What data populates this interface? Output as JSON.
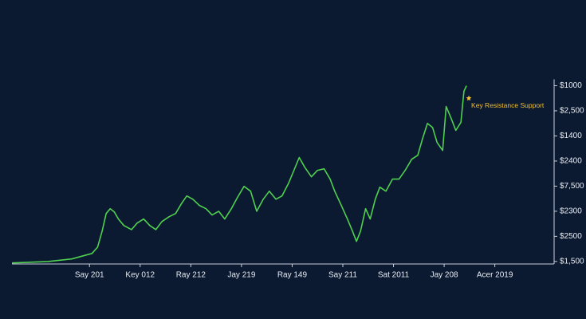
{
  "chart_data": {
    "type": "line",
    "annotation": "Key Resistance Support",
    "annotation_x": 8.44,
    "annotation_y": 6.2,
    "color": "#4fd14f",
    "annotation_color": "#f2c12e",
    "x": [
      -0.53,
      0.18,
      0.65,
      1.05,
      1.16,
      1.25,
      1.33,
      1.41,
      1.49,
      1.57,
      1.68,
      1.83,
      1.94,
      2.07,
      2.19,
      2.31,
      2.43,
      2.57,
      2.7,
      2.82,
      2.92,
      3.04,
      3.17,
      3.3,
      3.42,
      3.55,
      3.67,
      3.8,
      3.92,
      4.05,
      4.18,
      4.3,
      4.43,
      4.55,
      4.68,
      4.8,
      4.93,
      5.03,
      5.14,
      5.25,
      5.38,
      5.5,
      5.63,
      5.75,
      5.84,
      5.97,
      6.09,
      6.19,
      6.27,
      6.35,
      6.45,
      6.54,
      6.64,
      6.73,
      6.85,
      6.98,
      7.11,
      7.23,
      7.36,
      7.48,
      7.57,
      7.67,
      7.77,
      7.86,
      7.97,
      8.04,
      8.14,
      8.23,
      8.33,
      8.39,
      8.44
    ],
    "values": [
      -0.06,
      0,
      0.1,
      0.32,
      0.57,
      1.21,
      1.91,
      2.1,
      1.97,
      1.69,
      1.43,
      1.27,
      1.53,
      1.69,
      1.43,
      1.27,
      1.59,
      1.78,
      1.91,
      2.32,
      2.61,
      2.48,
      2.23,
      2.1,
      1.85,
      2.0,
      1.69,
      2.1,
      2.55,
      2.99,
      2.8,
      2.0,
      2.48,
      2.8,
      2.48,
      2.61,
      3.12,
      3.6,
      4.14,
      3.75,
      3.37,
      3.63,
      3.69,
      3.28,
      2.8,
      2.23,
      1.69,
      1.21,
      0.8,
      1.21,
      2.1,
      1.69,
      2.48,
      2.96,
      2.8,
      3.28,
      3.28,
      3.63,
      4.07,
      4.23,
      4.87,
      5.5,
      5.34,
      4.74,
      4.42,
      6.17,
      5.69,
      5.22,
      5.54,
      6.78,
      7.0
    ],
    "xlim": [
      -0.53,
      10.17
    ],
    "ylim": [
      -0.1,
      10
    ],
    "xticks": [
      {
        "value": 1,
        "label": "Say 201"
      },
      {
        "value": 2,
        "label": "Key 012"
      },
      {
        "value": 3,
        "label": "Ray 212"
      },
      {
        "value": 4,
        "label": "Jay 219"
      },
      {
        "value": 5,
        "label": "Ray 149"
      },
      {
        "value": 6,
        "label": "Say 211"
      },
      {
        "value": 7,
        "label": "Sat 2011"
      },
      {
        "value": 8,
        "label": "Jay 208"
      },
      {
        "value": 9,
        "label": "Acer 2019"
      }
    ],
    "yticks": [
      {
        "value": 0,
        "label": "$1,500"
      },
      {
        "value": 1,
        "label": "$2500"
      },
      {
        "value": 2,
        "label": "$2300"
      },
      {
        "value": 3,
        "label": "$7,500"
      },
      {
        "value": 4,
        "label": "$2400"
      },
      {
        "value": 5,
        "label": "$1400"
      },
      {
        "value": 6,
        "label": "$2,500"
      },
      {
        "value": 7,
        "label": "$1000"
      }
    ],
    "y_axis_side": "right",
    "grid": false
  }
}
